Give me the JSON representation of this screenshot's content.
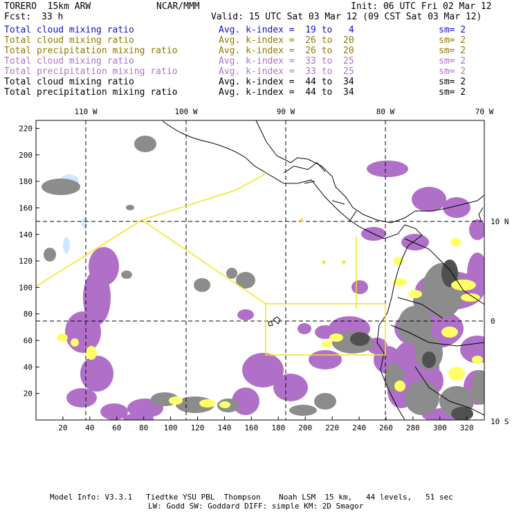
{
  "header": {
    "model": "TORERO  15km ARW",
    "org": "NCAR/MMM",
    "init": "Init: 06 UTC Fri 02 Mar 12",
    "fcst_label": "Fcst:",
    "fcst_value": "33 h",
    "valid": "Valid: 15 UTC Sat 03 Mar 12 (09 CST Sat 03 Mar 12)"
  },
  "legend": [
    {
      "field": "Total cloud mixing ratio",
      "kindex": "Avg. k-index =  19 to   4",
      "sm": "sm= 2",
      "color": "#1010c8"
    },
    {
      "field": "Total cloud mixing ratio",
      "kindex": "Avg. k-index =  26 to  20",
      "sm": "sm= 2",
      "color": "#8c7a00"
    },
    {
      "field": "Total precipitation mixing ratio",
      "kindex": "Avg. k-index =  26 to  20",
      "sm": "sm= 2",
      "color": "#8c7a00"
    },
    {
      "field": "Total cloud mixing ratio",
      "kindex": "Avg. k-index =  33 to  25",
      "sm": "sm= 2",
      "color": "#b070c8"
    },
    {
      "field": "Total precipitation mixing ratio",
      "kindex": "Avg. k-index =  33 to  25",
      "sm": "sm= 2",
      "color": "#b070c8"
    },
    {
      "field": "Total cloud mixing ratio",
      "kindex": "Avg. k-index =  44 to  34",
      "sm": "sm= 2",
      "color": "#000000"
    },
    {
      "field": "Total precipitation mixing ratio",
      "kindex": "Avg. k-index =  44 to  34",
      "sm": "sm= 2",
      "color": "#000000"
    }
  ],
  "map": {
    "top_lon_labels": [
      "110 W",
      "100 W",
      "90 W",
      "80 W",
      "70 W"
    ],
    "right_lat_labels": [
      "10 N",
      "0",
      "10 S"
    ],
    "x_ticks": [
      "20",
      "40",
      "60",
      "80",
      "100",
      "120",
      "140",
      "160",
      "180",
      "200",
      "220",
      "240",
      "260",
      "280",
      "300",
      "320"
    ],
    "y_ticks": [
      "20",
      "40",
      "60",
      "80",
      "100",
      "120",
      "140",
      "160",
      "180",
      "200",
      "220"
    ],
    "colors": {
      "purple": "#b070c8",
      "gray": "#8c8c8c",
      "dark_gray": "#505050",
      "yellow": "#ffff66",
      "yellow_line": "#f4e21c",
      "light_blue": "#cfe8ff",
      "coast": "#000000"
    }
  },
  "footer": {
    "line1": "Model Info: V3.3.1   Tiedtke YSU PBL  Thompson    Noah LSM  15 km,   44 levels,   51 sec",
    "line2": "LW: Godd SW: Goddard DIFF: simple KM: 2D Smagor"
  }
}
